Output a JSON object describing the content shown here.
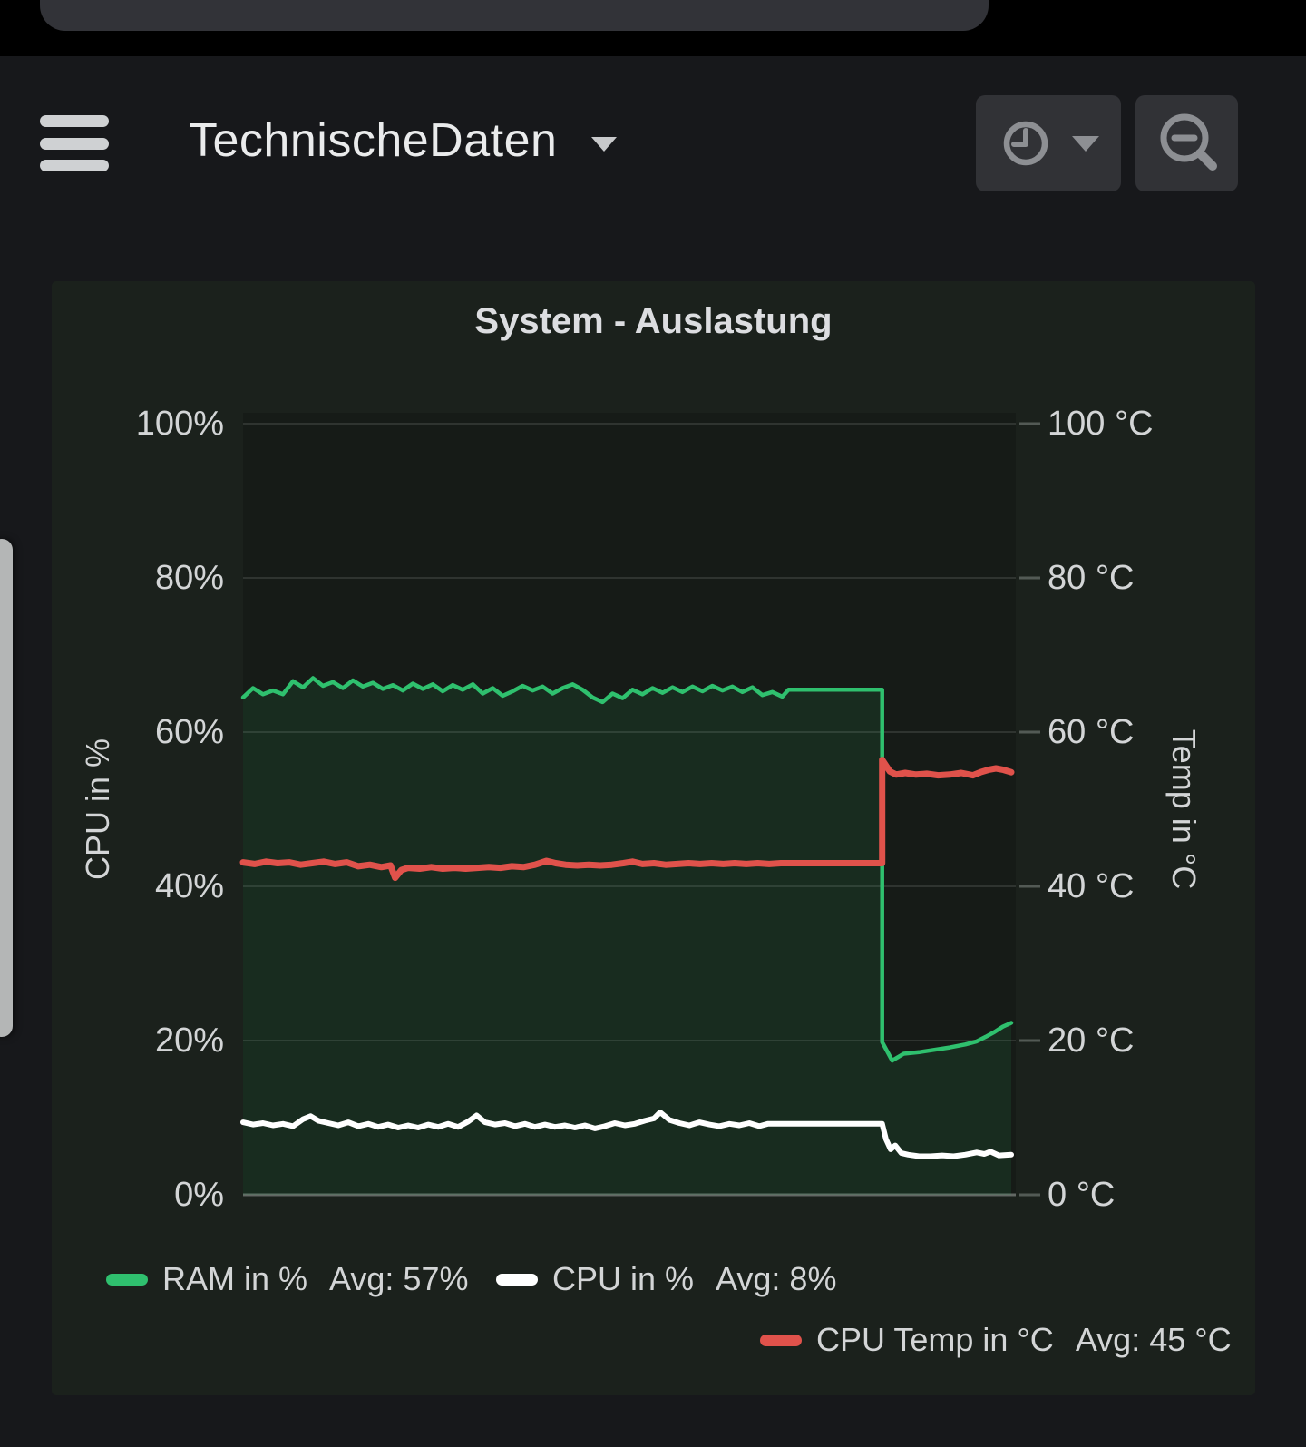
{
  "header": {
    "title": "TechnischeDaten",
    "menu_icon": "hamburger-menu",
    "title_caret_icon": "chevron-down",
    "time_picker_icon": "clock",
    "time_picker_caret_icon": "chevron-down",
    "zoom_icon": "zoom-out-magnifier"
  },
  "panel": {
    "title": "System - Auslastung"
  },
  "chart_data": {
    "type": "line",
    "title": "System - Auslastung",
    "x_axis": {
      "label": "",
      "tick_labels_visible": false,
      "x_unit": "relative_position_0_100"
    },
    "left_axis": {
      "label": "CPU in %",
      "range": [
        0,
        100
      ],
      "ticks": [
        "100%",
        "80%",
        "60%",
        "40%",
        "20%",
        "0%"
      ]
    },
    "right_axis": {
      "label": "Temp in °C",
      "range": [
        0,
        100
      ],
      "ticks": [
        "100 °C",
        "80 °C",
        "60 °C",
        "40 °C",
        "20 °C",
        "0 °C"
      ]
    },
    "legend_position": "bottom",
    "grid": true,
    "series": [
      {
        "name": "RAM in %",
        "avg_label": "Avg: 57%",
        "axis": "left",
        "color": "#2fc06e",
        "fill": true,
        "points": [
          [
            0,
            64.5
          ],
          [
            1.3,
            65.7
          ],
          [
            2.6,
            64.9
          ],
          [
            3.9,
            65.4
          ],
          [
            5.2,
            64.9
          ],
          [
            6.5,
            66.6
          ],
          [
            7.8,
            65.8
          ],
          [
            9.1,
            67.0
          ],
          [
            10.4,
            66.0
          ],
          [
            11.7,
            66.5
          ],
          [
            13,
            65.7
          ],
          [
            14.3,
            66.7
          ],
          [
            15.6,
            65.9
          ],
          [
            16.9,
            66.4
          ],
          [
            18.2,
            65.6
          ],
          [
            19.5,
            66.1
          ],
          [
            20.8,
            65.4
          ],
          [
            22.1,
            66.3
          ],
          [
            23.4,
            65.6
          ],
          [
            24.7,
            66.2
          ],
          [
            26,
            65.3
          ],
          [
            27.3,
            66.1
          ],
          [
            28.6,
            65.5
          ],
          [
            29.9,
            66.2
          ],
          [
            31.2,
            65.0
          ],
          [
            32.5,
            65.7
          ],
          [
            33.8,
            64.7
          ],
          [
            35.1,
            65.3
          ],
          [
            36.4,
            66.0
          ],
          [
            37.7,
            65.4
          ],
          [
            39,
            65.9
          ],
          [
            40.3,
            65.0
          ],
          [
            41.6,
            65.7
          ],
          [
            42.9,
            66.2
          ],
          [
            44.2,
            65.5
          ],
          [
            45.5,
            64.5
          ],
          [
            46.8,
            63.9
          ],
          [
            48.1,
            65.0
          ],
          [
            49.4,
            64.4
          ],
          [
            50.7,
            65.5
          ],
          [
            52,
            64.9
          ],
          [
            53.3,
            65.7
          ],
          [
            54.6,
            65.1
          ],
          [
            55.9,
            65.8
          ],
          [
            57.2,
            65.2
          ],
          [
            58.5,
            65.9
          ],
          [
            59.8,
            65.3
          ],
          [
            61.1,
            66.0
          ],
          [
            62.4,
            65.4
          ],
          [
            63.7,
            65.9
          ],
          [
            65,
            65.2
          ],
          [
            66.3,
            65.8
          ],
          [
            67.6,
            64.8
          ],
          [
            68.9,
            65.2
          ],
          [
            70.2,
            64.6
          ],
          [
            71,
            65.5
          ],
          [
            83.2,
            65.5
          ],
          [
            83.2,
            19.8
          ],
          [
            84.5,
            17.4
          ],
          [
            86,
            18.3
          ],
          [
            88,
            18.5
          ],
          [
            90,
            18.8
          ],
          [
            92,
            19.1
          ],
          [
            94,
            19.5
          ],
          [
            95.5,
            19.9
          ],
          [
            96.7,
            20.5
          ],
          [
            97.8,
            21.1
          ],
          [
            98.9,
            21.8
          ],
          [
            100,
            22.3
          ]
        ]
      },
      {
        "name": "CPU in %",
        "avg_label": "Avg: 8%",
        "axis": "left",
        "color": "#ffffff",
        "fill": false,
        "points": [
          [
            0,
            9.4
          ],
          [
            1.3,
            9.1
          ],
          [
            2.6,
            9.3
          ],
          [
            3.9,
            9.0
          ],
          [
            5.2,
            9.2
          ],
          [
            6.5,
            8.9
          ],
          [
            7.8,
            9.8
          ],
          [
            8.8,
            10.2
          ],
          [
            9.8,
            9.6
          ],
          [
            11.1,
            9.3
          ],
          [
            12.4,
            9.0
          ],
          [
            13.7,
            9.4
          ],
          [
            15,
            8.9
          ],
          [
            16.3,
            9.2
          ],
          [
            17.6,
            8.8
          ],
          [
            18.9,
            9.1
          ],
          [
            20.2,
            8.7
          ],
          [
            21.5,
            9.0
          ],
          [
            22.8,
            8.7
          ],
          [
            24.1,
            9.1
          ],
          [
            25.4,
            8.8
          ],
          [
            26.7,
            9.2
          ],
          [
            28,
            8.8
          ],
          [
            29.3,
            9.5
          ],
          [
            30.4,
            10.3
          ],
          [
            31.5,
            9.4
          ],
          [
            32.8,
            9.1
          ],
          [
            34.1,
            9.3
          ],
          [
            35.4,
            8.9
          ],
          [
            36.7,
            9.2
          ],
          [
            38,
            8.8
          ],
          [
            39.3,
            9.1
          ],
          [
            40.6,
            8.8
          ],
          [
            41.9,
            9.0
          ],
          [
            43.2,
            8.7
          ],
          [
            44.5,
            9.0
          ],
          [
            45.8,
            8.6
          ],
          [
            47.1,
            8.9
          ],
          [
            48.4,
            9.3
          ],
          [
            49.7,
            9.0
          ],
          [
            51,
            9.2
          ],
          [
            52.3,
            9.6
          ],
          [
            53.5,
            9.9
          ],
          [
            54.3,
            10.7
          ],
          [
            55.5,
            9.7
          ],
          [
            56.8,
            9.3
          ],
          [
            58.1,
            9.0
          ],
          [
            59.4,
            9.4
          ],
          [
            60.7,
            9.1
          ],
          [
            62,
            8.9
          ],
          [
            63.3,
            9.2
          ],
          [
            64.6,
            9.0
          ],
          [
            65.9,
            9.3
          ],
          [
            67.2,
            8.9
          ],
          [
            68.3,
            9.2
          ],
          [
            70,
            9.2
          ],
          [
            83.2,
            9.2
          ],
          [
            83.7,
            7.2
          ],
          [
            84.3,
            5.9
          ],
          [
            84.9,
            6.4
          ],
          [
            85.7,
            5.4
          ],
          [
            86.6,
            5.2
          ],
          [
            88,
            5.0
          ],
          [
            89.5,
            5.0
          ],
          [
            91,
            5.1
          ],
          [
            92.5,
            5.0
          ],
          [
            94,
            5.2
          ],
          [
            95.5,
            5.5
          ],
          [
            96.5,
            5.3
          ],
          [
            97.3,
            5.6
          ],
          [
            98.4,
            5.1
          ],
          [
            100,
            5.2
          ]
        ]
      },
      {
        "name": "CPU Temp in °C",
        "avg_label": "Avg: 45 °C",
        "axis": "right",
        "color": "#e0524b",
        "fill": false,
        "points": [
          [
            0,
            43.1
          ],
          [
            1.5,
            42.9
          ],
          [
            3,
            43.2
          ],
          [
            4.5,
            43.0
          ],
          [
            6,
            43.1
          ],
          [
            7.5,
            42.8
          ],
          [
            9,
            43.0
          ],
          [
            10.5,
            43.2
          ],
          [
            12,
            42.9
          ],
          [
            13.5,
            43.1
          ],
          [
            15,
            42.6
          ],
          [
            16.5,
            42.8
          ],
          [
            18,
            42.5
          ],
          [
            19.2,
            42.7
          ],
          [
            19.8,
            41.1
          ],
          [
            20.6,
            42.1
          ],
          [
            21.5,
            42.4
          ],
          [
            23,
            42.3
          ],
          [
            24.5,
            42.5
          ],
          [
            26,
            42.3
          ],
          [
            27.5,
            42.4
          ],
          [
            29,
            42.3
          ],
          [
            30.5,
            42.4
          ],
          [
            32,
            42.5
          ],
          [
            33.5,
            42.4
          ],
          [
            35,
            42.6
          ],
          [
            36.5,
            42.5
          ],
          [
            38,
            42.8
          ],
          [
            39.5,
            43.3
          ],
          [
            40.7,
            43.0
          ],
          [
            42,
            42.8
          ],
          [
            43.5,
            42.7
          ],
          [
            45,
            42.8
          ],
          [
            46.5,
            42.7
          ],
          [
            48,
            42.8
          ],
          [
            49.5,
            43.0
          ],
          [
            50.7,
            43.2
          ],
          [
            52,
            42.9
          ],
          [
            53.5,
            43.0
          ],
          [
            55,
            42.8
          ],
          [
            56.5,
            42.9
          ],
          [
            58,
            43.0
          ],
          [
            59.5,
            42.9
          ],
          [
            61,
            43.0
          ],
          [
            62.5,
            42.9
          ],
          [
            64,
            43.0
          ],
          [
            65.5,
            42.9
          ],
          [
            67,
            43.0
          ],
          [
            68.5,
            42.9
          ],
          [
            70,
            43.0
          ],
          [
            83.2,
            43.0
          ],
          [
            83.2,
            56.4
          ],
          [
            84.2,
            54.9
          ],
          [
            85,
            54.5
          ],
          [
            86.2,
            54.7
          ],
          [
            87.6,
            54.5
          ],
          [
            89,
            54.6
          ],
          [
            90.5,
            54.4
          ],
          [
            92,
            54.5
          ],
          [
            93.5,
            54.7
          ],
          [
            95,
            54.4
          ],
          [
            96,
            54.8
          ],
          [
            97,
            55.1
          ],
          [
            98,
            55.3
          ],
          [
            99,
            55.1
          ],
          [
            100,
            54.8
          ]
        ]
      }
    ]
  },
  "colors": {
    "page_bg": "#17181b",
    "statusbar_bg": "#000000",
    "statusbar_tab": "#323338",
    "panel_bg": "#1b211c",
    "plot_bg": "#161b17",
    "button_bg": "#313236",
    "icon": "#8d8f93",
    "text": "#d3d5d6",
    "title_text": "#eaebec",
    "green": "#2fc06e",
    "red": "#e0524b",
    "white": "#ffffff"
  }
}
